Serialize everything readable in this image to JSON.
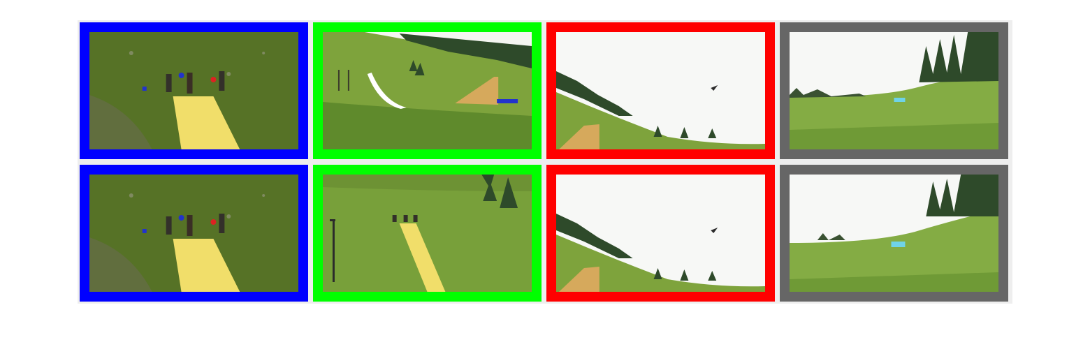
{
  "frame_colors": {
    "blue": "#0000ff",
    "green": "#00ff00",
    "red": "#ff0000",
    "gray": "#666666"
  },
  "grid": {
    "rows": 2,
    "columns": 4,
    "cells": [
      {
        "row": 1,
        "col": 1,
        "frame": "blue",
        "scene": "slide-top-people"
      },
      {
        "row": 1,
        "col": 2,
        "frame": "green",
        "scene": "slide-and-ramp-hillside"
      },
      {
        "row": 1,
        "col": 3,
        "frame": "red",
        "scene": "jumper-in-sky"
      },
      {
        "row": 1,
        "col": 4,
        "frame": "gray",
        "scene": "meadow-landing-pool"
      },
      {
        "row": 2,
        "col": 1,
        "frame": "blue",
        "scene": "slide-top-people"
      },
      {
        "row": 2,
        "col": 2,
        "frame": "green",
        "scene": "slide-closeup-pole"
      },
      {
        "row": 2,
        "col": 3,
        "frame": "red",
        "scene": "jumper-in-sky"
      },
      {
        "row": 2,
        "col": 4,
        "frame": "gray",
        "scene": "meadow-landing-pool"
      }
    ]
  }
}
